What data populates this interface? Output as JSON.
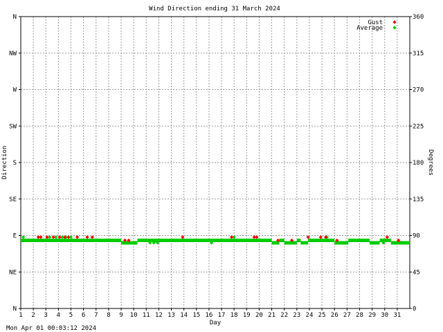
{
  "chart_data": {
    "type": "scatter",
    "title": "Wind Direction ending 31 March 2024",
    "xlabel": "Day",
    "ylabel_left": "Direction",
    "ylabel_right": "Degrees",
    "footer": "Mon Apr 01 00:03:12 2024",
    "xlim": [
      1,
      32
    ],
    "ylim": [
      0,
      360
    ],
    "grid": true,
    "legend_position": "top-right",
    "x_ticks": [
      "1",
      "2",
      "3",
      "4",
      "5",
      "6",
      "7",
      "8",
      "9",
      "10",
      "11",
      "12",
      "13",
      "14",
      "15",
      "16",
      "17",
      "18",
      "19",
      "20",
      "21",
      "22",
      "23",
      "24",
      "25",
      "26",
      "27",
      "28",
      "29",
      "30",
      "31"
    ],
    "y_ticks_left": [
      {
        "label": "N",
        "value": 0
      },
      {
        "label": "NE",
        "value": 45
      },
      {
        "label": "E",
        "value": 90
      },
      {
        "label": "SE",
        "value": 135
      },
      {
        "label": "S",
        "value": 180
      },
      {
        "label": "SW",
        "value": 225
      },
      {
        "label": "W",
        "value": 270
      },
      {
        "label": "NW",
        "value": 315
      },
      {
        "label": "N",
        "value": 360
      }
    ],
    "y_ticks_right": [
      {
        "label": "0",
        "value": 0
      },
      {
        "label": "45",
        "value": 45
      },
      {
        "label": "90",
        "value": 90
      },
      {
        "label": "135",
        "value": 135
      },
      {
        "label": "180",
        "value": 180
      },
      {
        "label": "225",
        "value": 225
      },
      {
        "label": "270",
        "value": 270
      },
      {
        "label": "315",
        "value": 315
      },
      {
        "label": "360",
        "value": 360
      }
    ],
    "series": [
      {
        "name": "Gust",
        "color": "#ff0000",
        "points": [
          [
            2.4,
            88
          ],
          [
            2.6,
            88
          ],
          [
            3.1,
            88
          ],
          [
            3.6,
            88
          ],
          [
            4.1,
            88
          ],
          [
            4.5,
            88
          ],
          [
            4.8,
            88
          ],
          [
            5.5,
            88
          ],
          [
            6.3,
            88
          ],
          [
            6.7,
            88
          ],
          [
            9.3,
            84
          ],
          [
            9.6,
            84
          ],
          [
            13.9,
            88
          ],
          [
            17.8,
            88
          ],
          [
            19.6,
            88
          ],
          [
            19.8,
            88
          ],
          [
            21.5,
            84
          ],
          [
            22.6,
            84
          ],
          [
            23.9,
            88
          ],
          [
            24.9,
            88
          ],
          [
            25.3,
            88
          ],
          [
            26.2,
            84
          ],
          [
            30.2,
            88
          ],
          [
            31.1,
            84
          ]
        ]
      },
      {
        "name": "Average",
        "color": "#00cc00",
        "segments": [
          {
            "from": 1.0,
            "to": 9.0,
            "value": 84
          },
          {
            "from": 9.0,
            "to": 10.3,
            "value": 81
          },
          {
            "from": 10.3,
            "to": 21.0,
            "value": 84
          },
          {
            "from": 21.0,
            "to": 21.6,
            "value": 81
          },
          {
            "from": 21.6,
            "to": 22.0,
            "value": 84
          },
          {
            "from": 22.0,
            "to": 23.0,
            "value": 81
          },
          {
            "from": 23.0,
            "to": 23.3,
            "value": 84
          },
          {
            "from": 23.3,
            "to": 23.9,
            "value": 81
          },
          {
            "from": 23.9,
            "to": 26.0,
            "value": 84
          },
          {
            "from": 26.0,
            "to": 27.1,
            "value": 81
          },
          {
            "from": 27.1,
            "to": 28.8,
            "value": 84
          },
          {
            "from": 28.8,
            "to": 29.6,
            "value": 81
          },
          {
            "from": 29.6,
            "to": 30.5,
            "value": 84
          },
          {
            "from": 30.5,
            "to": 32.0,
            "value": 81
          }
        ],
        "points": [
          [
            1.2,
            88
          ],
          [
            3.3,
            88
          ],
          [
            3.8,
            88
          ],
          [
            4.3,
            88
          ],
          [
            4.6,
            88
          ],
          [
            5.0,
            88
          ],
          [
            11.3,
            81
          ],
          [
            11.6,
            81
          ],
          [
            11.9,
            81
          ],
          [
            16.2,
            81
          ],
          [
            18.0,
            88
          ],
          [
            25.4,
            88
          ],
          [
            29.9,
            81
          ]
        ]
      }
    ]
  }
}
